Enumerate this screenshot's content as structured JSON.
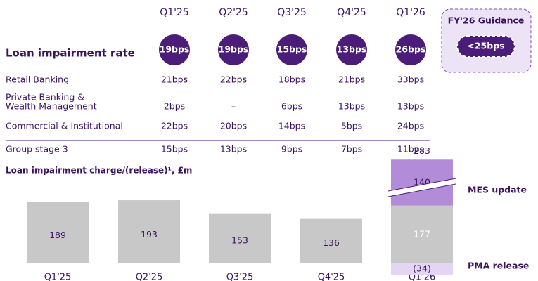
{
  "table": {
    "columns": [
      "Q1'25",
      "Q2'25",
      "Q3'25",
      "Q4'25",
      "Q1'26"
    ],
    "headline": {
      "label": "Loan impairment rate",
      "values": [
        "19bps",
        "19bps",
        "15bps",
        "13bps",
        "26bps"
      ]
    },
    "rows": [
      {
        "label": [
          "Retail Banking"
        ],
        "values": [
          "21bps",
          "22bps",
          "18bps",
          "21bps",
          "33bps"
        ]
      },
      {
        "label": [
          "Private Banking &",
          "Wealth Management"
        ],
        "values": [
          "2bps",
          "–",
          "6bps",
          "13bps",
          "13bps"
        ]
      },
      {
        "label": [
          "Commercial & Institutional"
        ],
        "values": [
          "22bps",
          "20bps",
          "14bps",
          "5bps",
          "24bps"
        ]
      }
    ],
    "footer": {
      "label": "Group stage 3",
      "values": [
        "15bps",
        "13bps",
        "9bps",
        "7bps",
        "11bps"
      ]
    }
  },
  "guidance": {
    "title": "FY'26 Guidance",
    "value": "<25bps"
  },
  "chart_data": {
    "type": "bar",
    "title": "Loan impairment charge/(release)¹, £m",
    "categories": [
      "Q1'25",
      "Q2'25",
      "Q3'25",
      "Q4'25",
      "Q1'26"
    ],
    "stacked": true,
    "series": [
      {
        "color": "#c8c8c8",
        "values": [
          189,
          193,
          153,
          136,
          177
        ]
      },
      {
        "name": "MES update",
        "color": "#b28cd9",
        "values": [
          null,
          null,
          null,
          null,
          140
        ]
      },
      {
        "name": "PMA release",
        "color": "#e3d5f3",
        "values": [
          null,
          null,
          null,
          null,
          -34
        ],
        "value_labels": [
          null,
          null,
          null,
          null,
          "(34)"
        ]
      }
    ],
    "totals": [
      null,
      null,
      null,
      null,
      283
    ]
  }
}
